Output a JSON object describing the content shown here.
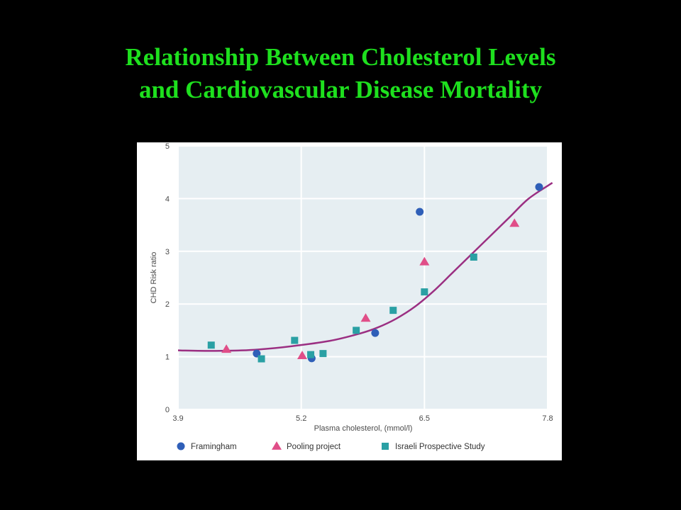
{
  "slide": {
    "title_line1": "Relationship Between Cholesterol Levels",
    "title_line2": "and Cardiovascular Disease Mortality",
    "title_color": "#1ee01e",
    "background": "#000000"
  },
  "chart_data": {
    "type": "scatter",
    "title": "",
    "xlabel": "Plasma cholesterol, (mmol/l)",
    "ylabel": "CHD Risk ratio",
    "xlim": [
      3.9,
      7.8
    ],
    "ylim": [
      0,
      5
    ],
    "xticks": [
      "3.9",
      "5.2",
      "6.5",
      "7.8"
    ],
    "yticks": [
      "0",
      "1",
      "2",
      "3",
      "4",
      "5"
    ],
    "grid": true,
    "legend_position": "bottom",
    "plot_background": "#e6eef2",
    "series": [
      {
        "name": "Framingham",
        "marker": "circle",
        "color": "#2f5fb8",
        "points": [
          [
            4.73,
            1.06
          ],
          [
            5.31,
            0.97
          ],
          [
            5.98,
            1.45
          ],
          [
            6.45,
            3.75
          ],
          [
            7.71,
            4.22
          ]
        ]
      },
      {
        "name": "Pooling project",
        "marker": "triangle",
        "color": "#e04e88",
        "points": [
          [
            4.41,
            1.14
          ],
          [
            5.21,
            1.02
          ],
          [
            5.88,
            1.73
          ],
          [
            6.5,
            2.8
          ],
          [
            7.45,
            3.53
          ]
        ]
      },
      {
        "name": "Israeli Prospective Study",
        "marker": "square",
        "color": "#2aa0a4",
        "points": [
          [
            4.25,
            1.22
          ],
          [
            4.78,
            0.96
          ],
          [
            5.13,
            1.31
          ],
          [
            5.3,
            1.04
          ],
          [
            5.43,
            1.06
          ],
          [
            5.78,
            1.5
          ],
          [
            6.17,
            1.88
          ],
          [
            6.5,
            2.23
          ],
          [
            7.02,
            2.89
          ]
        ]
      }
    ],
    "trend": {
      "name": "fitted curve",
      "color": "#9b2f82",
      "points": [
        [
          3.9,
          1.12
        ],
        [
          4.3,
          1.11
        ],
        [
          4.7,
          1.13
        ],
        [
          5.1,
          1.2
        ],
        [
          5.5,
          1.3
        ],
        [
          5.8,
          1.43
        ],
        [
          6.0,
          1.55
        ],
        [
          6.2,
          1.72
        ],
        [
          6.4,
          1.95
        ],
        [
          6.6,
          2.25
        ],
        [
          6.8,
          2.6
        ],
        [
          7.0,
          2.95
        ],
        [
          7.2,
          3.3
        ],
        [
          7.4,
          3.65
        ],
        [
          7.6,
          4.0
        ],
        [
          7.85,
          4.3
        ]
      ]
    }
  }
}
